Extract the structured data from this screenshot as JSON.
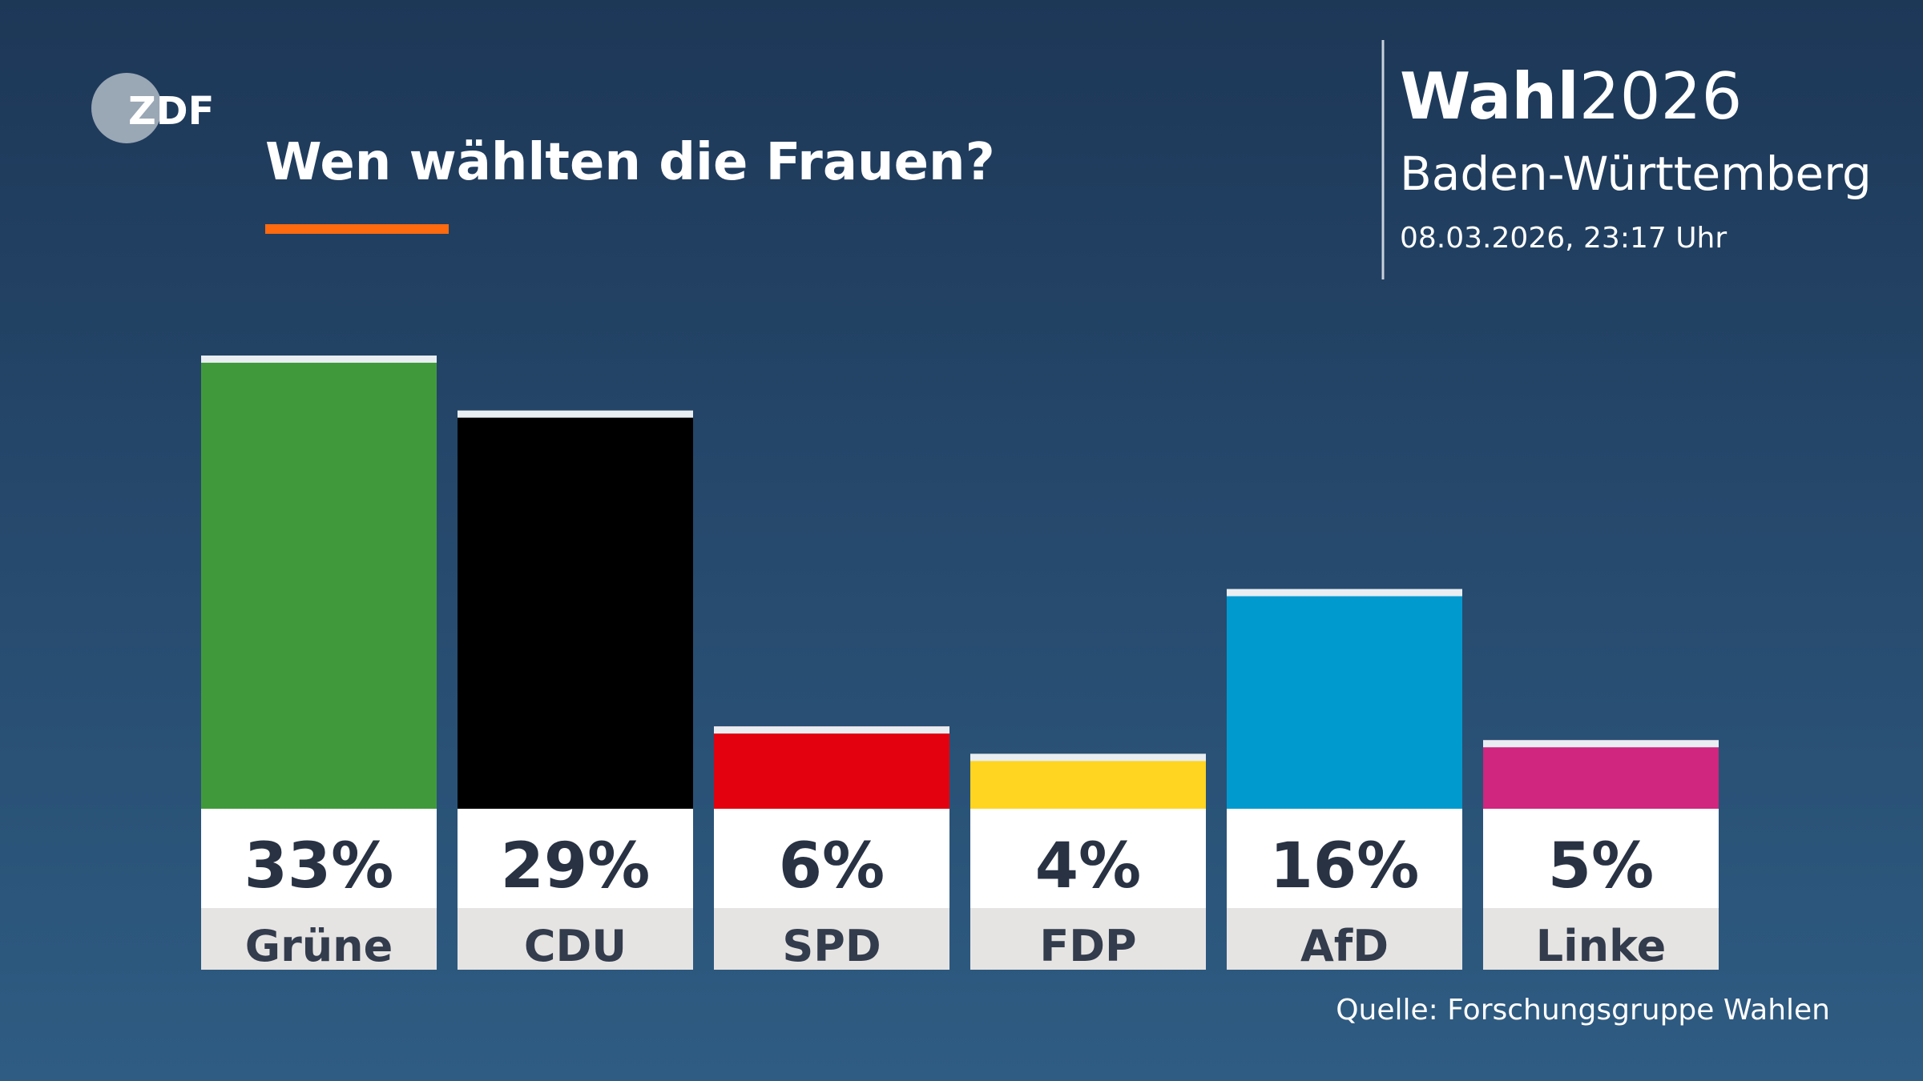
{
  "logo": "ZDF",
  "header": {
    "brand_bold": "Wahl",
    "brand_year": "2026",
    "region": "Baden-Württemberg",
    "timestamp": "08.03.2026, 23:17 Uhr"
  },
  "source": "Quelle: Forschungsgruppe Wahlen",
  "chart_data": {
    "type": "bar",
    "title": "Wen wählten die Frauen?",
    "categories": [
      "Grüne",
      "CDU",
      "SPD",
      "FDP",
      "AfD",
      "Linke"
    ],
    "values": [
      33,
      29,
      6,
      4,
      16,
      5
    ],
    "value_labels": [
      "33%",
      "29%",
      "6%",
      "4%",
      "16%",
      "5%"
    ],
    "colors": [
      "#409a3c",
      "#000000",
      "#e3000f",
      "#ffd521",
      "#009acf",
      "#d0267f"
    ]
  }
}
